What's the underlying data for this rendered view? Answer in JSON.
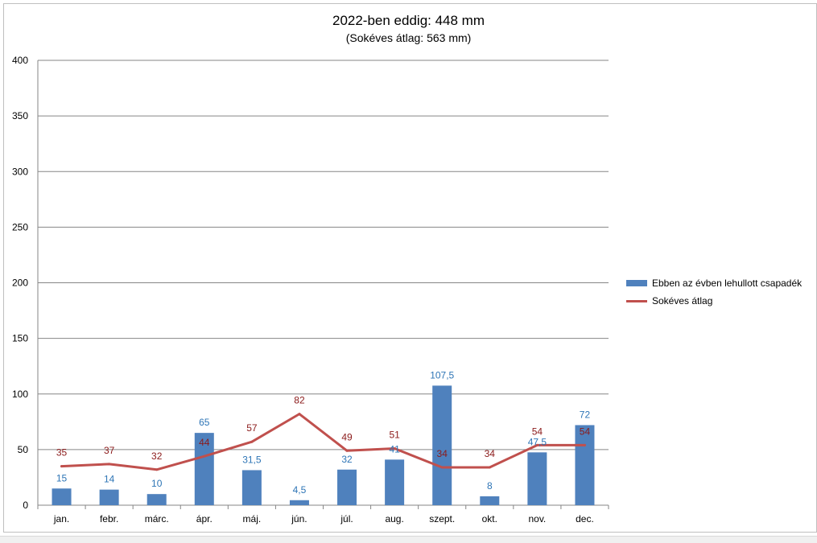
{
  "chart_data": {
    "type": "bar",
    "title": "2022-ben eddig: 448 mm",
    "subtitle": "(Sokéves átlag: 563 mm)",
    "categories": [
      "jan.",
      "febr.",
      "márc.",
      "ápr.",
      "máj.",
      "jún.",
      "júl.",
      "aug.",
      "szept.",
      "okt.",
      "nov.",
      "dec."
    ],
    "series": [
      {
        "name": "Ebben az évben lehullott csapadék",
        "type": "bar",
        "color": "#4f81bd",
        "label_color": "#2e75b6",
        "values": [
          15,
          14,
          10,
          65,
          31.5,
          4.5,
          32,
          41,
          107.5,
          8,
          47.5,
          72
        ],
        "labels": [
          "15",
          "14",
          "10",
          "65",
          "31,5",
          "4,5",
          "32",
          "41",
          "107,5",
          "8",
          "47,5",
          "72"
        ]
      },
      {
        "name": "Sokéves átlag",
        "type": "line",
        "color": "#c0504d",
        "label_color": "#8b1a1a",
        "values": [
          35,
          37,
          32,
          44,
          57,
          82,
          49,
          51,
          34,
          34,
          54,
          54
        ],
        "labels": [
          "35",
          "37",
          "32",
          "44",
          "57",
          "82",
          "49",
          "51",
          "34",
          "34",
          "54",
          "54"
        ]
      }
    ],
    "y_ticks": [
      "0",
      "50",
      "100",
      "150",
      "200",
      "250",
      "300",
      "350",
      "400"
    ],
    "ylim": [
      0,
      400
    ],
    "grid": true,
    "legend_position": "right"
  }
}
